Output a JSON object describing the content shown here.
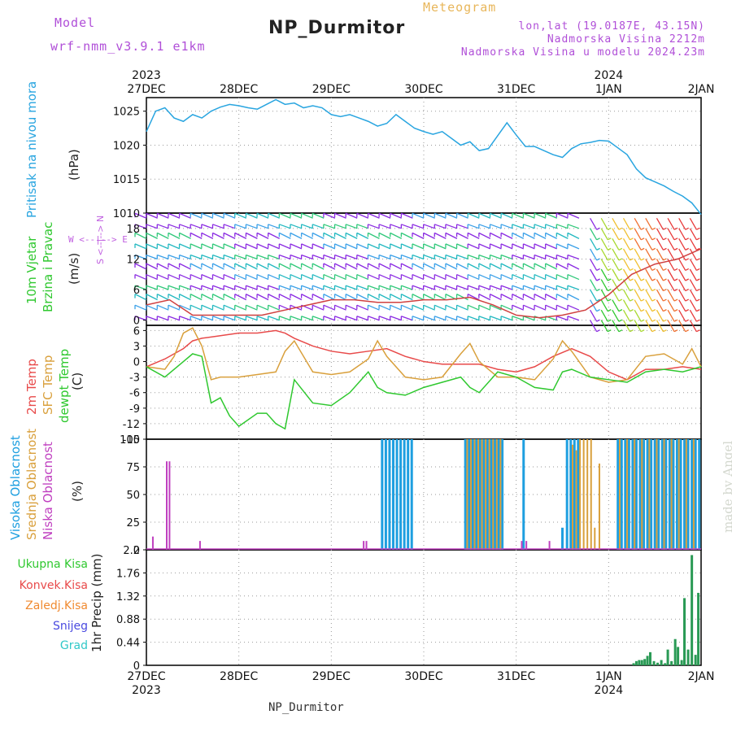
{
  "header": {
    "model_label": "Model",
    "model_name": "wrf-nmm_v3.9.1 e1km",
    "title": "NP_Durmitor",
    "subtitle": "Meteogram",
    "lonlat": "lon,lat (19.0187E, 43.15N)",
    "elevation": "Nadmorska Visina 2212m",
    "model_elevation": "Nadmorska Visina u modelu 2024.23m"
  },
  "colors": {
    "pressure": "#29a5e0",
    "temp2m": "#e84a4a",
    "sfc_temp": "#d9a03c",
    "dewpt": "#2fc82f",
    "high_cloud": "#1e9fe0",
    "mid_cloud": "#d9a03c",
    "low_cloud": "#c040c0",
    "total_precip": "#2a9a55",
    "convective": "#e84a4a",
    "freezing": "#f08a30",
    "snow": "#4a4ae0",
    "hail": "#30c8c8",
    "wind_label": "#2fc82f",
    "arrows": "#c060e0"
  },
  "time_axis": {
    "top_years": [
      "2023",
      "2024"
    ],
    "labels": [
      "27DEC",
      "28DEC",
      "29DEC",
      "30DEC",
      "31DEC",
      "1JAN",
      "2JAN"
    ],
    "bottom_years": [
      "2023",
      "2024"
    ]
  },
  "panels": {
    "pressure": {
      "label": "Pritisak na nivou mora",
      "unit": "(hPa)"
    },
    "wind": {
      "label1": "10m Vjetar",
      "label2": "Brzina i Pravac",
      "unit": "(m/s)",
      "compass": "W <--|--> E",
      "compass_ns": "S <--|--> N"
    },
    "temp": {
      "label1": "2m Temp",
      "label2": "SFC Temp",
      "label3": "dewpt Temp",
      "unit": "(C)"
    },
    "cloud": {
      "label1": "Visoka Oblacnost",
      "label2": "Srednja Oblacnost",
      "label3": "Niska Oblacnost",
      "unit": "(%)"
    },
    "precip": {
      "unit": "1hr Precip (mm)",
      "legend": [
        "Ukupna Kisa",
        "Konvek.Kisa",
        "Zaledj.Kisa",
        "Snijeg",
        "Grad"
      ]
    }
  },
  "credit": "made by Angel",
  "footer": "NP_Durmitor",
  "chart_data": [
    {
      "type": "line",
      "name": "pressure",
      "ylim": [
        1010,
        1027
      ],
      "yticks": [
        1010,
        1015,
        1020,
        1025
      ],
      "series": [
        {
          "name": "Pritisak na nivou mora",
          "x": [
            0,
            0.1,
            0.2,
            0.3,
            0.4,
            0.5,
            0.6,
            0.7,
            0.8,
            0.9,
            1.0,
            1.1,
            1.2,
            1.3,
            1.4,
            1.5,
            1.6,
            1.7,
            1.8,
            1.9,
            2.0,
            2.1,
            2.2,
            2.3,
            2.4,
            2.5,
            2.6,
            2.7,
            2.8,
            2.9,
            3.0,
            3.1,
            3.2,
            3.3,
            3.4,
            3.5,
            3.6,
            3.7,
            3.8,
            3.9,
            4.0,
            4.1,
            4.2,
            4.3,
            4.4,
            4.5,
            4.6,
            4.7,
            4.8,
            4.9,
            5.0,
            5.1,
            5.2,
            5.3,
            5.4,
            5.5,
            5.6,
            5.7,
            5.8,
            5.9,
            6.0
          ],
          "y": [
            1022,
            1025,
            1025.5,
            1024,
            1023.5,
            1024.5,
            1024,
            1025,
            1025.6,
            1026,
            1025.8,
            1025.5,
            1025.3,
            1026,
            1026.7,
            1026,
            1026.2,
            1025.5,
            1025.8,
            1025.5,
            1024.5,
            1024.2,
            1024.5,
            1024,
            1023.5,
            1022.8,
            1023.2,
            1024.5,
            1023.5,
            1022.5,
            1022,
            1021.6,
            1022,
            1021,
            1020,
            1020.5,
            1019.2,
            1019.5,
            1021.4,
            1023.3,
            1021.5,
            1019.8,
            1019.8,
            1019.2,
            1018.6,
            1018.2,
            1019.5,
            1020.2,
            1020.4,
            1020.7,
            1020.6,
            1019.6,
            1018.6,
            1016.5,
            1015.2,
            1014.6,
            1014,
            1013.2,
            1012.5,
            1011.5,
            1009.8
          ]
        }
      ]
    },
    {
      "type": "line",
      "name": "wind",
      "ylim": [
        -1,
        21
      ],
      "yticks": [
        0,
        6,
        12,
        18
      ],
      "series": [
        {
          "name": "10m Vjetar",
          "x": [
            0,
            0.25,
            0.5,
            0.75,
            1.0,
            1.25,
            1.5,
            1.75,
            2.0,
            2.25,
            2.5,
            2.75,
            3.0,
            3.25,
            3.5,
            3.75,
            4.0,
            4.25,
            4.5,
            4.75,
            5.0,
            5.25,
            5.5,
            5.75,
            6.0
          ],
          "y": [
            3,
            4,
            1,
            1,
            1,
            1,
            2,
            3,
            4,
            4,
            3.5,
            3.5,
            4,
            4,
            4.5,
            3,
            1,
            0.5,
            1,
            2,
            5,
            9,
            11,
            12,
            14
          ]
        }
      ]
    },
    {
      "type": "line",
      "name": "temperature",
      "ylim": [
        -15,
        7
      ],
      "yticks": [
        -15,
        -12,
        -9,
        -6,
        -3,
        0,
        3,
        6
      ],
      "series": [
        {
          "name": "2m Temp",
          "x": [
            0,
            0.2,
            0.4,
            0.5,
            0.6,
            0.8,
            1.0,
            1.2,
            1.4,
            1.5,
            1.6,
            1.8,
            2.0,
            2.2,
            2.4,
            2.6,
            2.8,
            3.0,
            3.2,
            3.4,
            3.6,
            3.8,
            4.0,
            4.2,
            4.4,
            4.6,
            4.8,
            5.0,
            5.2,
            5.4,
            5.6,
            5.8,
            6.0
          ],
          "y": [
            -1,
            0.5,
            2.5,
            4,
            4.5,
            5,
            5.5,
            5.5,
            6,
            5.5,
            4.5,
            3,
            2,
            1.5,
            2,
            2.5,
            1,
            0,
            -0.5,
            -0.5,
            -0.5,
            -1.5,
            -2,
            -1,
            1,
            2.5,
            1,
            -2,
            -3.5,
            -1.5,
            -1.5,
            -1,
            -1.5
          ]
        },
        {
          "name": "SFC Temp",
          "x": [
            0,
            0.2,
            0.3,
            0.4,
            0.5,
            0.6,
            0.7,
            0.8,
            1.0,
            1.2,
            1.4,
            1.5,
            1.6,
            1.8,
            2.0,
            2.2,
            2.4,
            2.5,
            2.6,
            2.8,
            3.0,
            3.2,
            3.4,
            3.5,
            3.6,
            3.8,
            4.0,
            4.2,
            4.4,
            4.5,
            4.6,
            4.8,
            5.0,
            5.2,
            5.4,
            5.6,
            5.8,
            5.9,
            6.0
          ],
          "y": [
            -1,
            -1.5,
            1,
            5.5,
            6.5,
            3,
            -3.5,
            -3,
            -3,
            -2.5,
            -2,
            2,
            4,
            -2,
            -2.5,
            -2,
            0.5,
            4,
            1,
            -3,
            -3.5,
            -3,
            1.5,
            3.5,
            0,
            -3,
            -3,
            -3.5,
            0.5,
            4,
            2,
            -3,
            -4,
            -3.5,
            1,
            1.5,
            -0.5,
            2.5,
            -1
          ]
        },
        {
          "name": "dewpt Temp",
          "x": [
            0,
            0.2,
            0.4,
            0.5,
            0.6,
            0.7,
            0.8,
            0.9,
            1.0,
            1.2,
            1.3,
            1.4,
            1.5,
            1.6,
            1.8,
            2.0,
            2.2,
            2.4,
            2.5,
            2.6,
            2.8,
            3.0,
            3.2,
            3.4,
            3.5,
            3.6,
            3.8,
            4.0,
            4.2,
            4.4,
            4.5,
            4.6,
            4.8,
            5.0,
            5.2,
            5.4,
            5.6,
            5.8,
            6.0
          ],
          "y": [
            -1,
            -3,
            0,
            1.5,
            1,
            -8,
            -7,
            -10.5,
            -12.5,
            -10,
            -10,
            -12,
            -13,
            -3.5,
            -8,
            -8.5,
            -6,
            -2,
            -5,
            -6,
            -6.5,
            -5,
            -4,
            -3,
            -5,
            -6,
            -2,
            -3,
            -5,
            -5.5,
            -2,
            -1.5,
            -3,
            -3.5,
            -4,
            -2,
            -1.5,
            -2,
            -1
          ]
        }
      ]
    },
    {
      "type": "bar",
      "name": "cloud",
      "ylim": [
        0,
        100
      ],
      "yticks": [
        0,
        25,
        50,
        75,
        100
      ],
      "series": [
        {
          "name": "Niska Oblacnost",
          "x": [
            0.07,
            0.22,
            0.25,
            0.58,
            2.35,
            2.38,
            4.06,
            4.11,
            4.36
          ],
          "values": [
            12,
            80,
            80,
            8,
            8,
            8,
            8,
            8,
            8
          ]
        },
        {
          "name": "Visoka Oblacnost",
          "x": [
            2.55,
            2.59,
            2.63,
            2.67,
            2.71,
            2.75,
            2.79,
            2.83,
            2.87,
            3.45,
            3.49,
            3.53,
            3.57,
            3.61,
            3.65,
            3.69,
            3.73,
            3.77,
            3.81,
            3.85,
            4.08,
            4.5,
            4.55,
            4.59,
            4.63,
            4.67,
            5.1,
            5.14,
            5.18,
            5.22,
            5.26,
            5.3,
            5.34,
            5.38,
            5.42,
            5.46,
            5.5,
            5.54,
            5.58,
            5.62,
            5.66,
            5.7,
            5.74,
            5.78,
            5.82,
            5.86,
            5.9,
            5.94,
            5.98
          ],
          "values": [
            100,
            100,
            100,
            100,
            100,
            100,
            100,
            100,
            100,
            100,
            100,
            100,
            100,
            100,
            100,
            100,
            100,
            100,
            100,
            100,
            100,
            20,
            100,
            100,
            100,
            100,
            100,
            100,
            100,
            100,
            100,
            100,
            100,
            100,
            100,
            100,
            100,
            100,
            100,
            100,
            100,
            100,
            100,
            100,
            100,
            100,
            100,
            100,
            100
          ]
        },
        {
          "name": "Srednja Oblacnost",
          "x": [
            3.47,
            3.51,
            3.55,
            3.59,
            3.63,
            3.67,
            3.71,
            3.75,
            3.79,
            3.83,
            4.61,
            4.65,
            4.69,
            4.73,
            4.77,
            4.81,
            4.85,
            4.9,
            5.12,
            5.2,
            5.28,
            5.36,
            5.44,
            5.52,
            5.6,
            5.68,
            5.76,
            5.84,
            5.92
          ],
          "values": [
            100,
            100,
            100,
            100,
            100,
            100,
            100,
            100,
            100,
            100,
            95,
            90,
            100,
            100,
            100,
            100,
            20,
            78,
            100,
            100,
            100,
            100,
            100,
            100,
            100,
            100,
            100,
            100,
            100
          ]
        }
      ]
    },
    {
      "type": "bar",
      "name": "precip",
      "ylim": [
        0,
        2.2
      ],
      "yticks": [
        0,
        0.44,
        0.88,
        1.32,
        1.76,
        2.2
      ],
      "series": [
        {
          "name": "Ukupna Kisa",
          "x": [
            5.27,
            5.3,
            5.33,
            5.36,
            5.39,
            5.42,
            5.45,
            5.49,
            5.53,
            5.57,
            5.61,
            5.64,
            5.68,
            5.72,
            5.75,
            5.79,
            5.82,
            5.86,
            5.9,
            5.94,
            5.97
          ],
          "values": [
            0.04,
            0.08,
            0.1,
            0.1,
            0.12,
            0.18,
            0.25,
            0.08,
            0.05,
            0.1,
            0.04,
            0.3,
            0.08,
            0.5,
            0.35,
            0.1,
            1.28,
            0.3,
            2.1,
            0.2,
            1.38
          ]
        }
      ]
    }
  ]
}
